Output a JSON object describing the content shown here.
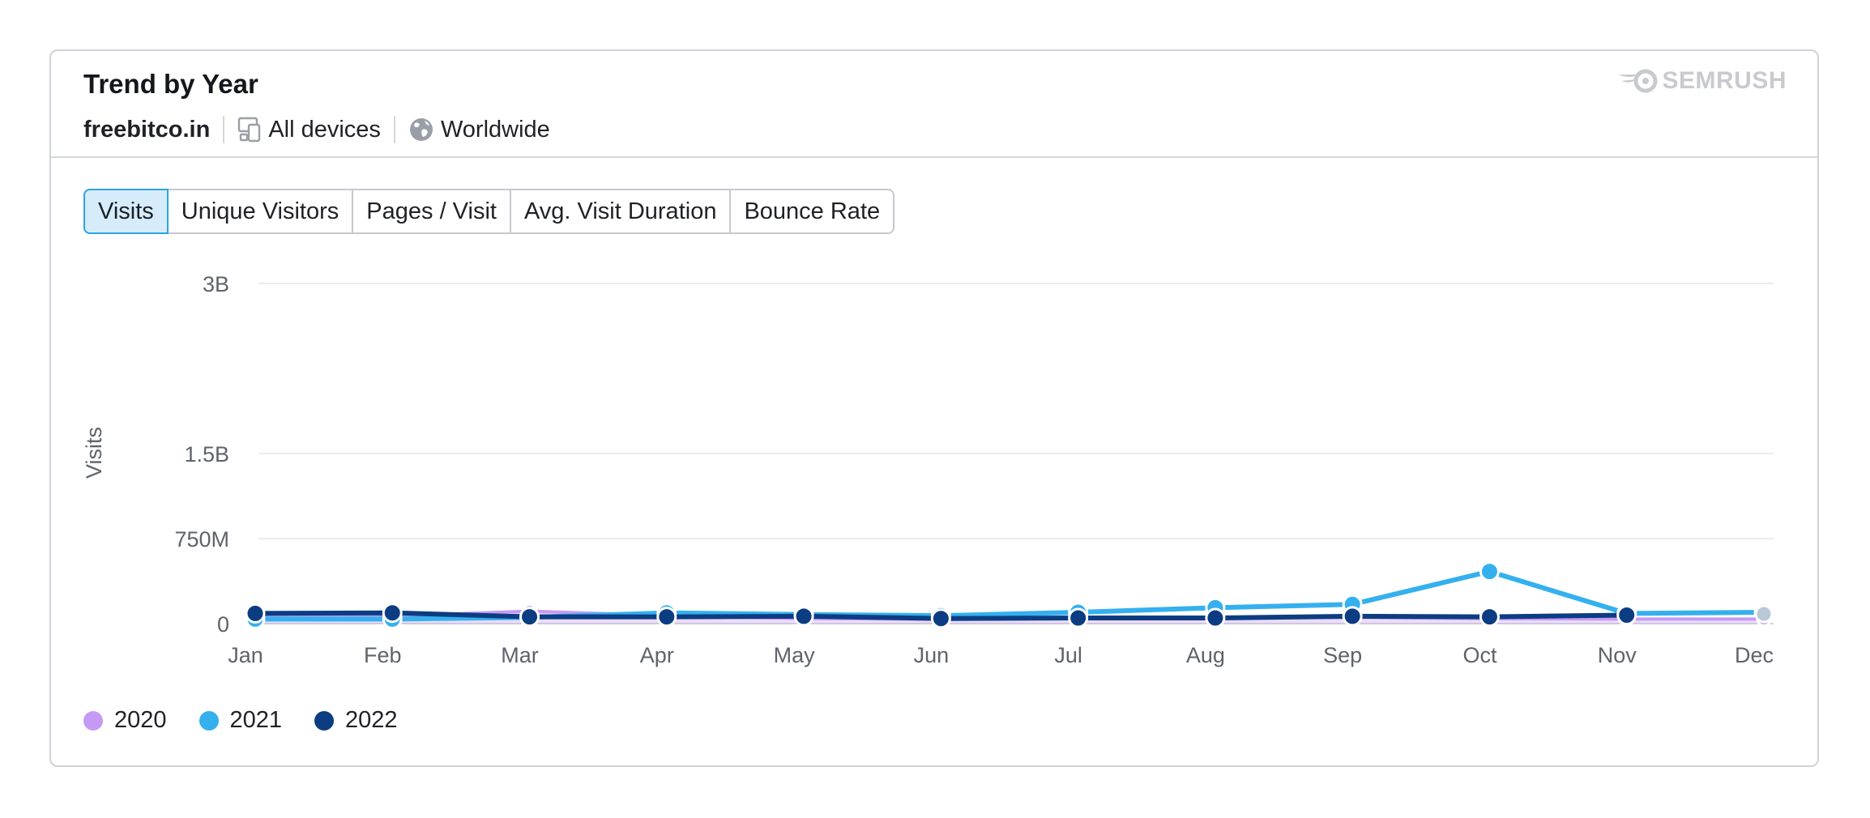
{
  "card": {
    "title": "Trend by Year",
    "domain": "freebitco.in",
    "devices": "All devices",
    "region": "Worldwide",
    "logo_text": "SEMRUSH"
  },
  "tabs": [
    {
      "label": "Visits",
      "active": true
    },
    {
      "label": "Unique Visitors",
      "active": false
    },
    {
      "label": "Pages / Visit",
      "active": false
    },
    {
      "label": "Avg. Visit Duration",
      "active": false
    },
    {
      "label": "Bounce Rate",
      "active": false
    }
  ],
  "chart_data": {
    "type": "line",
    "ylabel": "Visits",
    "yticks": [
      {
        "value": 0,
        "label": "0"
      },
      {
        "value": 750000000,
        "label": "750M"
      },
      {
        "value": 1500000000,
        "label": "1.5B"
      },
      {
        "value": 3000000000,
        "label": "3B"
      }
    ],
    "ylim": [
      0,
      3000000000
    ],
    "categories": [
      "Jan",
      "Feb",
      "Mar",
      "Apr",
      "May",
      "Jun",
      "Jul",
      "Aug",
      "Sep",
      "Oct",
      "Nov",
      "Dec"
    ],
    "grid": true,
    "legend_position": "bottom-left",
    "series": [
      {
        "name": "2020",
        "color": "#c59af5",
        "values": [
          60000000,
          65000000,
          110000000,
          70000000,
          45000000,
          40000000,
          45000000,
          50000000,
          55000000,
          45000000,
          40000000,
          40000000
        ]
      },
      {
        "name": "2021",
        "color": "#34b0ef",
        "values": [
          40000000,
          40000000,
          55000000,
          95000000,
          80000000,
          70000000,
          100000000,
          140000000,
          170000000,
          460000000,
          90000000,
          100000000
        ]
      },
      {
        "name": "2022",
        "color": "#0c3d82",
        "values": [
          90000000,
          95000000,
          60000000,
          60000000,
          65000000,
          45000000,
          50000000,
          50000000,
          65000000,
          60000000,
          75000000,
          null
        ]
      }
    ]
  }
}
